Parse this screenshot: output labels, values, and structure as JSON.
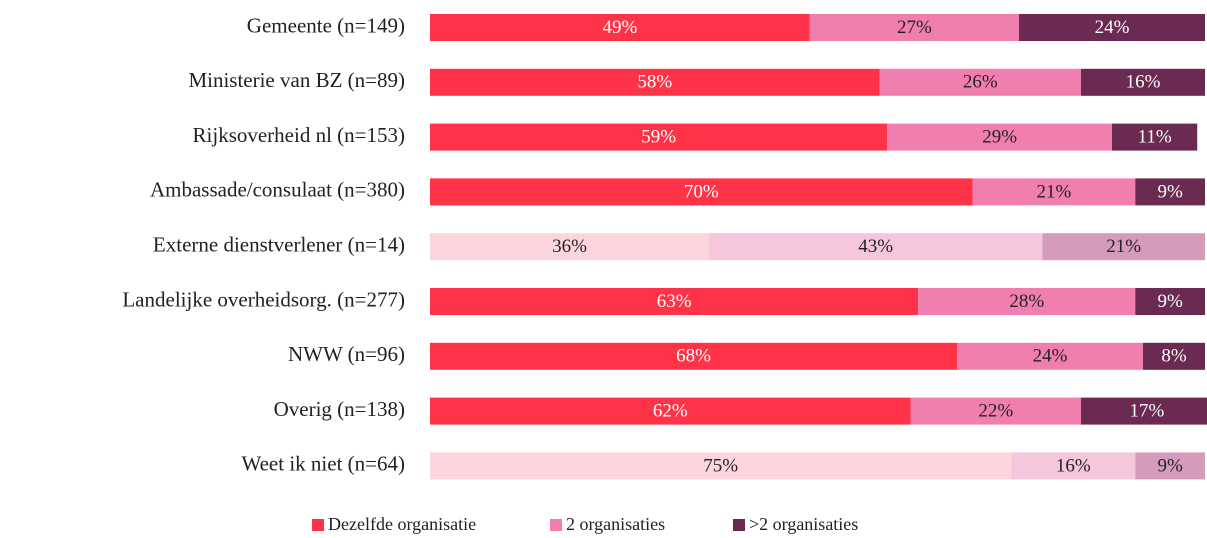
{
  "chart_data": {
    "type": "stacked_barh",
    "categories": [
      "Gemeente (n=149)",
      "Ministerie van BZ (n=89)",
      "Rijksoverheid nl (n=153)",
      "Ambassade/consulaat (n=380)",
      "Externe dienstverlener (n=14)",
      "Landelijke overheidsorg. (n=277)",
      "NWW (n=96)",
      "Overig (n=138)",
      "Weet ik niet (n=64)"
    ],
    "xlim": [
      0,
      100
    ],
    "series": [
      {
        "name": "Dezelfde organisatie",
        "color": "#ff3347",
        "colors": [
          "#ff3347",
          "#ff3347",
          "#ff3347",
          "#ff3347",
          "#fdd5dc",
          "#ff3347",
          "#ff3347",
          "#ff3347",
          "#fdd5dc"
        ],
        "values": [
          49,
          58,
          59,
          70,
          36,
          63,
          68,
          62,
          75
        ],
        "value_labels": [
          "49%",
          "58%",
          "59%",
          "70%",
          "36%",
          "63%",
          "68%",
          "62%",
          "75%"
        ]
      },
      {
        "name": "2 organisaties",
        "color": "#f07fb0",
        "colors": [
          "#f07fb0",
          "#f07fb0",
          "#f07fb0",
          "#f07fb0",
          "#f5c6dc",
          "#f07fb0",
          "#f07fb0",
          "#f07fb0",
          "#f5c6dc"
        ],
        "values": [
          27,
          26,
          29,
          21,
          43,
          28,
          24,
          22,
          16
        ],
        "value_labels": [
          "27%",
          "26%",
          "29%",
          "21%",
          "43%",
          "28%",
          "24%",
          "22%",
          "16%"
        ]
      },
      {
        "name": ">2 organisaties",
        "color": "#6b2a52",
        "colors": [
          "#6b2a52",
          "#6b2a52",
          "#6b2a52",
          "#6b2a52",
          "#d59bbd",
          "#6b2a52",
          "#6b2a52",
          "#6b2a52",
          "#d59bbd"
        ],
        "values": [
          24,
          16,
          11,
          9,
          21,
          9,
          8,
          17,
          9
        ],
        "value_labels": [
          "24%",
          "16%",
          "11%",
          "9%",
          "21%",
          "9%",
          "8%",
          "17%",
          "9%"
        ]
      }
    ],
    "legend": "bottom"
  }
}
